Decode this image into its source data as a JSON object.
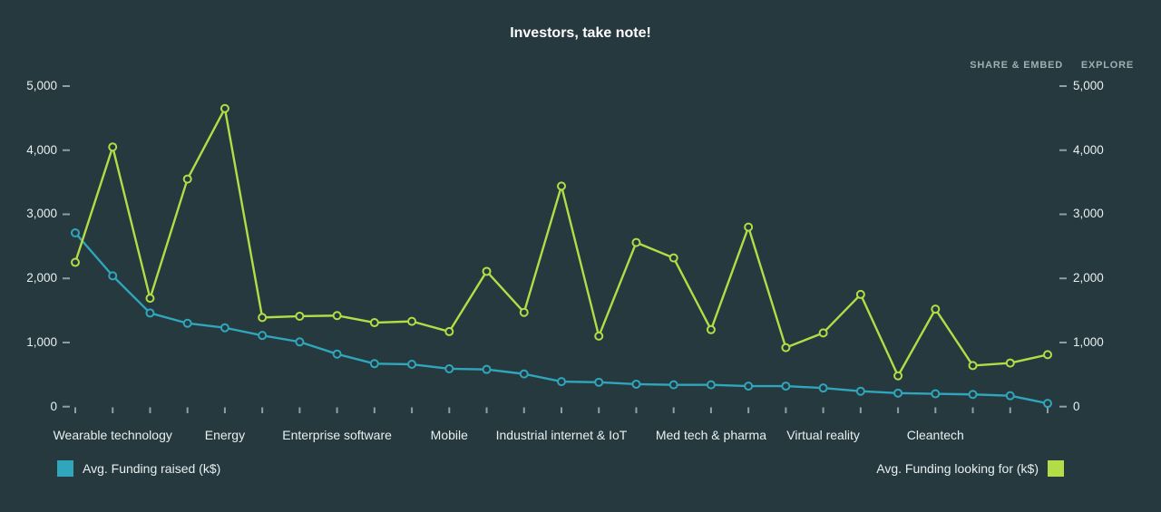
{
  "header": {
    "title": "Investors, take note!",
    "links": [
      {
        "label": "SHARE & EMBED"
      },
      {
        "label": "EXPLORE"
      }
    ]
  },
  "colors": {
    "background": "#26393E",
    "title": "#FFFFFF",
    "axis_text": "#E8EFEF",
    "muted_text": "#9FAFB2",
    "tick": "#8DA0A3",
    "raised": "#2FA6BB",
    "looking": "#B3DC46"
  },
  "legend": {
    "raised_label": "Avg. Funding raised (k$)",
    "looking_label": "Avg. Funding looking for (k$)"
  },
  "chart_data": {
    "type": "line",
    "title": "Investors, take note!",
    "xlabel": "",
    "ylabel": "",
    "ylim": [
      0,
      5000
    ],
    "y_ticks": [
      0,
      1000,
      2000,
      3000,
      4000,
      5000
    ],
    "y_tick_labels": [
      "0",
      "1,000",
      "2,000",
      "3,000",
      "4,000",
      "5,000"
    ],
    "dual_y_axis": true,
    "grid": false,
    "legend_position": "bottom",
    "x_point_count": 27,
    "x_labeled_ticks": [
      {
        "index": 1,
        "label": "Wearable technology"
      },
      {
        "index": 4,
        "label": "Energy"
      },
      {
        "index": 7,
        "label": "Enterprise software"
      },
      {
        "index": 10,
        "label": "Mobile"
      },
      {
        "index": 13,
        "label": "Industrial internet & IoT"
      },
      {
        "index": 17,
        "label": "Med tech & pharma"
      },
      {
        "index": 20,
        "label": "Virtual reality"
      },
      {
        "index": 23,
        "label": "Cleantech"
      }
    ],
    "series": [
      {
        "name": "Avg. Funding raised (k$)",
        "color": "#2FA6BB",
        "values": [
          2710,
          2040,
          1460,
          1300,
          1230,
          1110,
          1010,
          820,
          670,
          660,
          590,
          580,
          510,
          390,
          380,
          350,
          340,
          340,
          320,
          320,
          290,
          240,
          210,
          200,
          190,
          170,
          50
        ]
      },
      {
        "name": "Avg. Funding looking for (k$)",
        "color": "#B3DC46",
        "values": [
          2250,
          4050,
          1690,
          3550,
          4650,
          1390,
          1410,
          1420,
          1310,
          1330,
          1170,
          2110,
          1470,
          3440,
          1100,
          2560,
          2320,
          1200,
          2800,
          920,
          1150,
          1750,
          480,
          1520,
          640,
          680,
          810
        ]
      }
    ]
  }
}
